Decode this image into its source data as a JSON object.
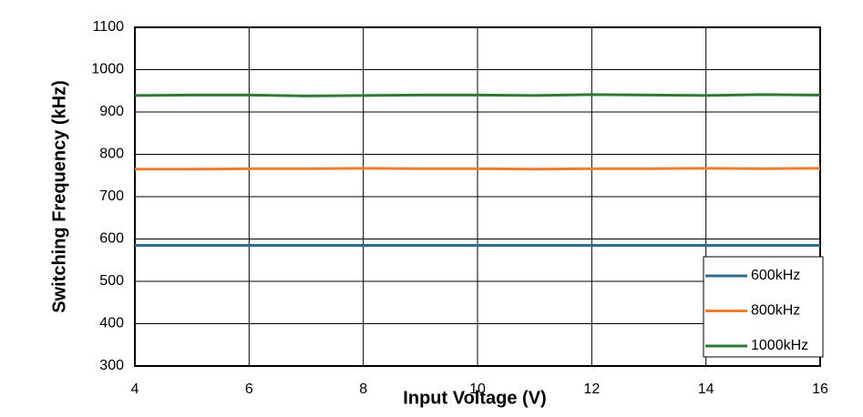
{
  "chart_data": {
    "type": "line",
    "x_label": "Input Voltage (V)",
    "y_label": "Switching Frequency (kHz)",
    "x": [
      4,
      5,
      6,
      7,
      8,
      9,
      10,
      11,
      12,
      13,
      14,
      15,
      16
    ],
    "series": [
      {
        "name": "600kHz",
        "color": "#2e6b8f",
        "values": [
          585,
          585,
          585,
          585,
          585,
          585,
          585,
          585,
          585,
          585,
          585,
          585,
          585
        ]
      },
      {
        "name": "800kHz",
        "color": "#ed7d31",
        "values": [
          765,
          765,
          766,
          766,
          767,
          766,
          766,
          765,
          766,
          766,
          767,
          766,
          767
        ]
      },
      {
        "name": "1000kHz",
        "color": "#2e7a34",
        "values": [
          939,
          940,
          940,
          938,
          939,
          940,
          940,
          939,
          941,
          940,
          939,
          941,
          940
        ]
      }
    ],
    "xlim": [
      4,
      16
    ],
    "xticks": [
      4,
      6,
      8,
      10,
      12,
      14,
      16
    ],
    "ylim": [
      300,
      1100
    ],
    "yticks": [
      300,
      400,
      500,
      600,
      700,
      800,
      900,
      1000,
      1100
    ],
    "grid": true,
    "legend": "lower right"
  }
}
